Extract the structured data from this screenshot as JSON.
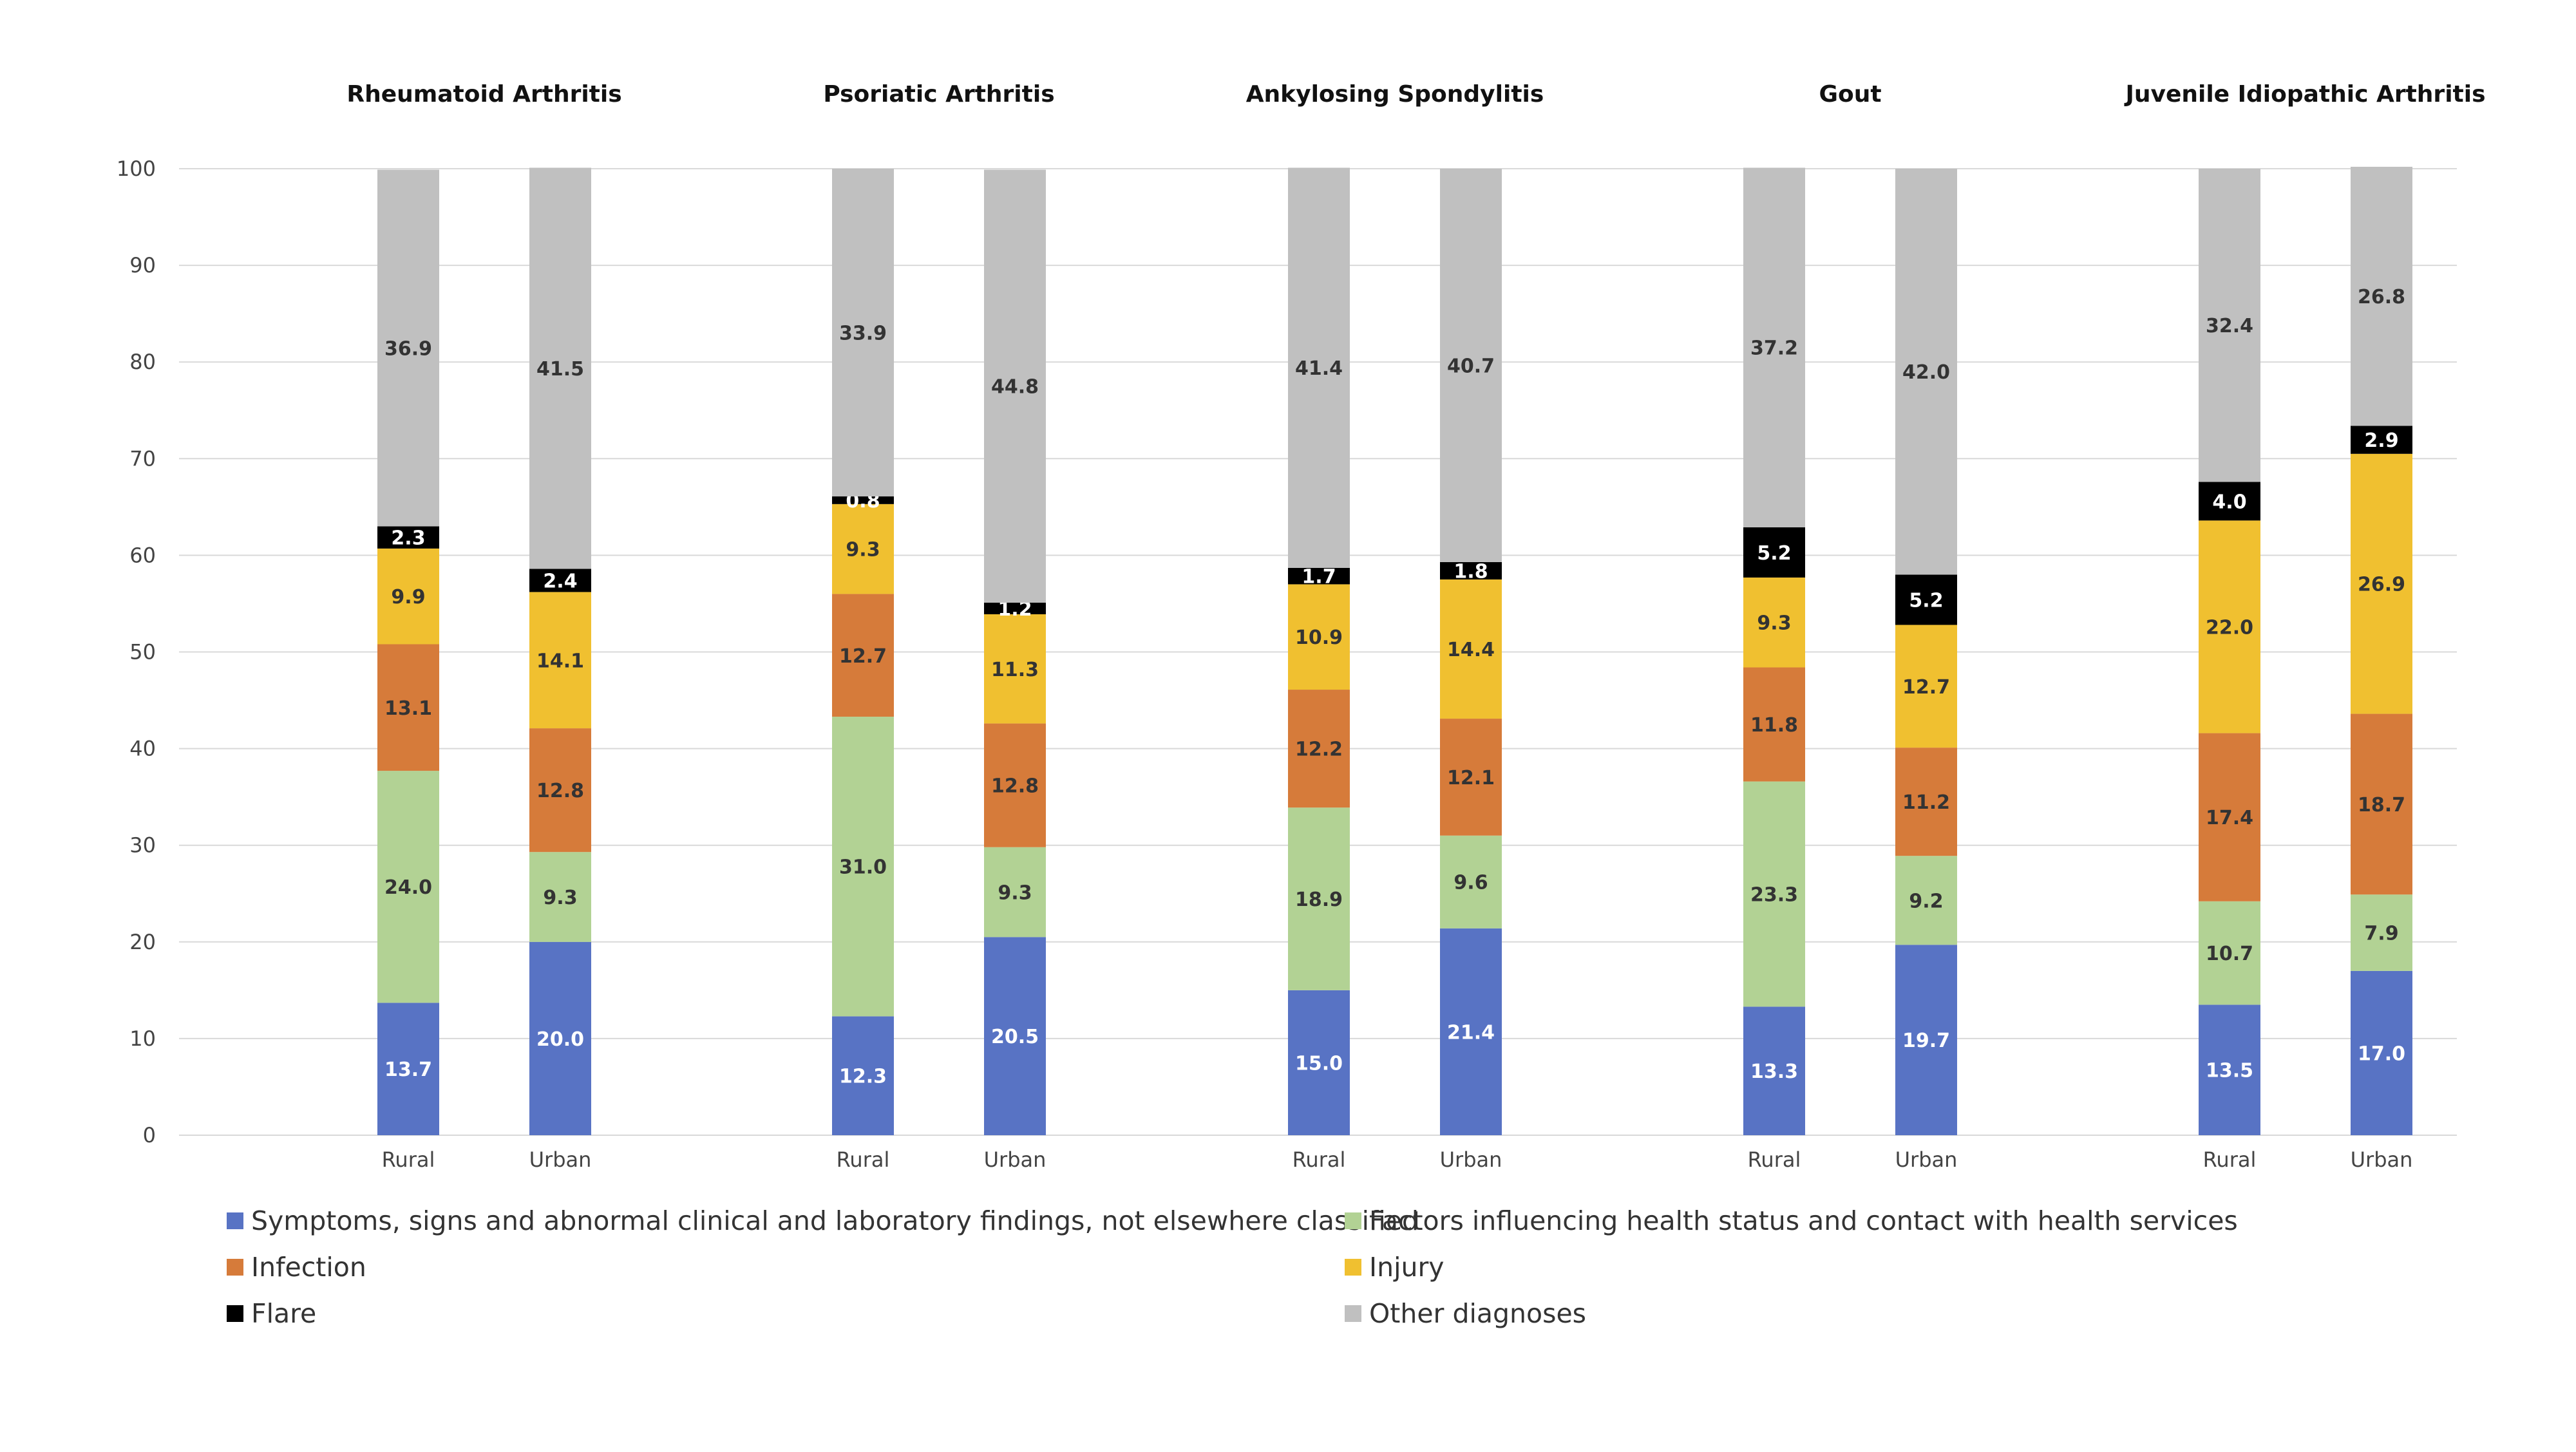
{
  "chart_data": {
    "type": "bar",
    "stacked": true,
    "ylim": [
      0,
      100
    ],
    "yticks": [
      0,
      10,
      20,
      30,
      40,
      50,
      60,
      70,
      80,
      90,
      100
    ],
    "grid": true,
    "legend_position": "bottom",
    "categories": [
      "Rural",
      "Urban"
    ],
    "series_meta": [
      {
        "name": "Symptoms, signs and abnormal clinical and laboratory findings, not elsewhere classified",
        "color": "#5873c4",
        "label_color": "#ffffff"
      },
      {
        "name": "Factors influencing health status and contact with health services",
        "color": "#b2d294",
        "label_color": "#333333"
      },
      {
        "name": "Infection",
        "color": "#d67b3a",
        "label_color": "#333333"
      },
      {
        "name": "Injury",
        "color": "#f0c030",
        "label_color": "#333333"
      },
      {
        "name": "Flare",
        "color": "#000000",
        "label_color": "#ffffff"
      },
      {
        "name": "Other diagnoses",
        "color": "#c0c0c0",
        "label_color": "#333333"
      }
    ],
    "panels": [
      {
        "title": "Rheumatoid Arthritis",
        "bars": [
          {
            "category": "Rural",
            "values": [
              13.7,
              24.0,
              13.1,
              9.9,
              2.3,
              36.9
            ]
          },
          {
            "category": "Urban",
            "values": [
              20.0,
              9.3,
              12.8,
              14.1,
              2.4,
              41.5
            ]
          }
        ]
      },
      {
        "title": "Psoriatic Arthritis",
        "bars": [
          {
            "category": "Rural",
            "values": [
              12.3,
              31.0,
              12.7,
              9.3,
              0.8,
              33.9
            ]
          },
          {
            "category": "Urban",
            "values": [
              20.5,
              9.3,
              12.8,
              11.3,
              1.2,
              44.8
            ]
          }
        ]
      },
      {
        "title": "Ankylosing Spondylitis",
        "bars": [
          {
            "category": "Rural",
            "values": [
              15.0,
              18.9,
              12.2,
              10.9,
              1.7,
              41.4
            ]
          },
          {
            "category": "Urban",
            "values": [
              21.4,
              9.6,
              12.1,
              14.4,
              1.8,
              40.7
            ]
          }
        ]
      },
      {
        "title": "Gout",
        "bars": [
          {
            "category": "Rural",
            "values": [
              13.3,
              23.3,
              11.8,
              9.3,
              5.2,
              37.2
            ]
          },
          {
            "category": "Urban",
            "values": [
              19.7,
              9.2,
              11.2,
              12.7,
              5.2,
              42.0
            ]
          }
        ]
      },
      {
        "title": "Juvenile Idiopathic Arthritis",
        "bars": [
          {
            "category": "Rural",
            "values": [
              13.5,
              10.7,
              17.4,
              22.0,
              4.0,
              32.4
            ]
          },
          {
            "category": "Urban",
            "values": [
              17.0,
              7.9,
              18.7,
              26.9,
              2.9,
              26.8
            ]
          }
        ]
      }
    ]
  }
}
